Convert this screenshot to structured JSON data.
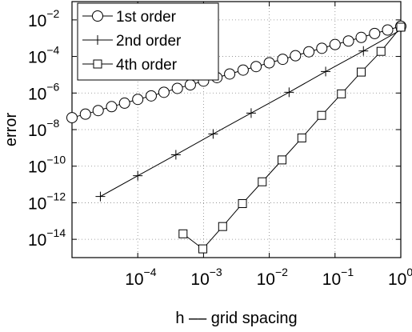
{
  "chart_data": {
    "type": "line",
    "xscale": "log",
    "yscale": "log",
    "xlim": [
      1e-05,
      1
    ],
    "ylim": [
      1e-15,
      0.1
    ],
    "xlabel": "h –– grid spacing",
    "ylabel": "error",
    "grid": true,
    "legend_position": "top-left",
    "x_ticks": [
      {
        "value": 0.0001,
        "base": "10",
        "exp": "−4"
      },
      {
        "value": 0.001,
        "base": "10",
        "exp": "−3"
      },
      {
        "value": 0.01,
        "base": "10",
        "exp": "−2"
      },
      {
        "value": 0.1,
        "base": "10",
        "exp": "−1"
      },
      {
        "value": 1,
        "base": "10",
        "exp": "0"
      }
    ],
    "y_ticks": [
      {
        "value": 1e-14,
        "base": "10",
        "exp": "−14"
      },
      {
        "value": 1e-12,
        "base": "10",
        "exp": "−12"
      },
      {
        "value": 1e-10,
        "base": "10",
        "exp": "−10"
      },
      {
        "value": 1e-08,
        "base": "10",
        "exp": "−8"
      },
      {
        "value": 1e-06,
        "base": "10",
        "exp": "−6"
      },
      {
        "value": 0.0001,
        "base": "10",
        "exp": "−4"
      },
      {
        "value": 0.01,
        "base": "10",
        "exp": "−2"
      }
    ],
    "series": [
      {
        "name": "1st order",
        "marker": "circle",
        "x": [
          1,
          0.63,
          0.4,
          0.25,
          0.16,
          0.1,
          0.063,
          0.04,
          0.025,
          0.016,
          0.01,
          0.0063,
          0.004,
          0.0025,
          0.0016,
          0.001,
          0.00063,
          0.0004,
          0.00025,
          0.00016,
          0.0001,
          6.3e-05,
          4e-05,
          2.5e-05,
          1.6e-05,
          1e-05
        ],
        "y": [
          0.0045,
          0.0028,
          0.0018,
          0.0011,
          0.0007,
          0.00045,
          0.00028,
          0.00018,
          0.00011,
          7e-05,
          4.5e-05,
          2.8e-05,
          1.8e-05,
          1.1e-05,
          7e-06,
          4.5e-06,
          2.8e-06,
          1.8e-06,
          1.1e-06,
          7e-07,
          4.5e-07,
          2.8e-07,
          1.8e-07,
          1.1e-07,
          7e-08,
          4.5e-08
        ]
      },
      {
        "name": "2nd order",
        "marker": "plus",
        "x": [
          1,
          0.27,
          0.072,
          0.02,
          0.0053,
          0.0014,
          0.00038,
          0.0001,
          2.7e-05,
          7.2e-06
        ],
        "y": [
          0.0028,
          0.0002,
          1.5e-05,
          1.1e-06,
          8e-08,
          5.8e-09,
          4.2e-10,
          3e-11,
          2.2e-12,
          1.6e-13
        ]
      },
      {
        "name": "4th order",
        "marker": "square",
        "x": [
          1,
          0.5,
          0.25,
          0.125,
          0.0625,
          0.03125,
          0.015625,
          0.0078125,
          0.0039063,
          0.0019531,
          0.0009766,
          0.0004883
        ],
        "y": [
          0.004,
          0.00019,
          1.4e-05,
          9e-07,
          6e-08,
          3.5e-09,
          2.2e-10,
          1.4e-11,
          9e-13,
          5e-14,
          3e-15,
          2e-14
        ]
      }
    ]
  }
}
